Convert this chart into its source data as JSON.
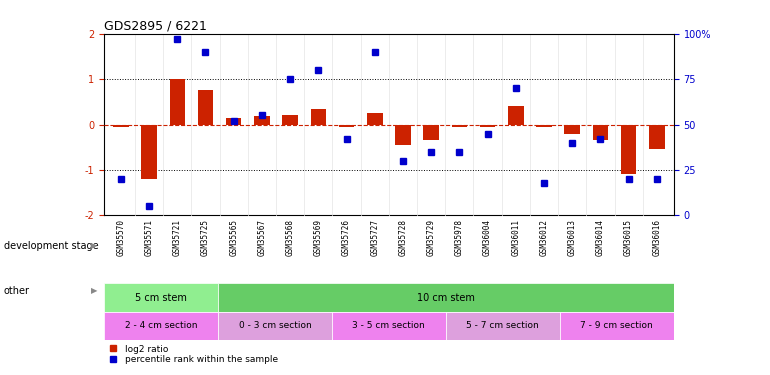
{
  "title": "GDS2895 / 6221",
  "samples": [
    "GSM35570",
    "GSM35571",
    "GSM35721",
    "GSM35725",
    "GSM35565",
    "GSM35567",
    "GSM35568",
    "GSM35569",
    "GSM35726",
    "GSM35727",
    "GSM35728",
    "GSM35729",
    "GSM35978",
    "GSM36004",
    "GSM36011",
    "GSM36012",
    "GSM36013",
    "GSM36014",
    "GSM36015",
    "GSM36016"
  ],
  "log2_ratio": [
    -0.05,
    -1.2,
    1.0,
    0.75,
    0.15,
    0.18,
    0.2,
    0.35,
    -0.05,
    0.25,
    -0.45,
    -0.35,
    -0.05,
    -0.05,
    0.4,
    -0.05,
    -0.2,
    -0.35,
    -1.1,
    -0.55
  ],
  "percentile": [
    20,
    5,
    97,
    90,
    52,
    55,
    75,
    80,
    42,
    90,
    30,
    35,
    35,
    45,
    70,
    18,
    40,
    42,
    20,
    20
  ],
  "dev_stage_groups": [
    {
      "label": "5 cm stem",
      "start": 0,
      "end": 4,
      "color": "#90EE90"
    },
    {
      "label": "10 cm stem",
      "start": 4,
      "end": 20,
      "color": "#66CC66"
    }
  ],
  "other_groups": [
    {
      "label": "2 - 4 cm section",
      "start": 0,
      "end": 4,
      "color": "#EE82EE"
    },
    {
      "label": "0 - 3 cm section",
      "start": 4,
      "end": 8,
      "color": "#DDA0DD"
    },
    {
      "label": "3 - 5 cm section",
      "start": 8,
      "end": 12,
      "color": "#EE82EE"
    },
    {
      "label": "5 - 7 cm section",
      "start": 12,
      "end": 16,
      "color": "#DDA0DD"
    },
    {
      "label": "7 - 9 cm section",
      "start": 16,
      "end": 20,
      "color": "#EE82EE"
    }
  ],
  "bar_color": "#CC2200",
  "dot_color": "#0000CC",
  "bg_color": "#FFFFFF",
  "ylim": [
    -2,
    2
  ],
  "y2lim": [
    0,
    100
  ],
  "hline_color": "#CC2200",
  "dotted_color": "#000000",
  "tick_bg_color": "#CCCCCC",
  "dev_stage_label": "development stage",
  "other_label": "other",
  "legend_log2": "log2 ratio",
  "legend_pct": "percentile rank within the sample"
}
